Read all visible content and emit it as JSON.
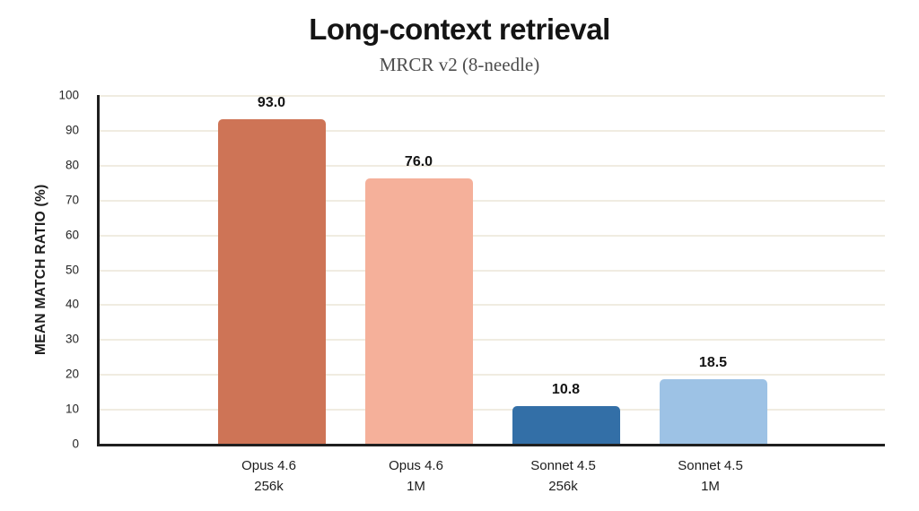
{
  "header": {
    "title": "Long-context retrieval",
    "subtitle": "MRCR v2 (8-needle)"
  },
  "chart_data": {
    "type": "bar",
    "title": "Long-context retrieval",
    "subtitle": "MRCR v2 (8-needle)",
    "categories": [
      [
        "Opus 4.6",
        "256k"
      ],
      [
        "Opus 4.6",
        "1M"
      ],
      [
        "Sonnet 4.5",
        "256k"
      ],
      [
        "Sonnet 4.5",
        "1M"
      ]
    ],
    "values": [
      93.0,
      76.0,
      10.8,
      18.5
    ],
    "value_labels": [
      "93.0",
      "76.0",
      "10.8",
      "18.5"
    ],
    "bar_colors": [
      "#ce7456",
      "#f5b09a",
      "#336fa7",
      "#9dc2e5"
    ],
    "xlabel": "",
    "ylabel": "MEAN MATCH RATIO (%)",
    "ylim": [
      0,
      100
    ],
    "yticks": [
      0,
      10,
      20,
      30,
      40,
      50,
      60,
      70,
      80,
      90,
      100
    ],
    "grid": "horizontal",
    "legend": "none"
  },
  "colors": {
    "background": "#ffffff",
    "axis": "#1f1f1f",
    "gridline": "#f0ece1",
    "title_text": "#141414",
    "subtitle_text": "#4d4d4d",
    "tick_text": "#262626",
    "bar_opus_256k": "#ce7456",
    "bar_opus_1m": "#f5b09a",
    "bar_sonnet_256k": "#336fa7",
    "bar_sonnet_1m": "#9dc2e5"
  }
}
